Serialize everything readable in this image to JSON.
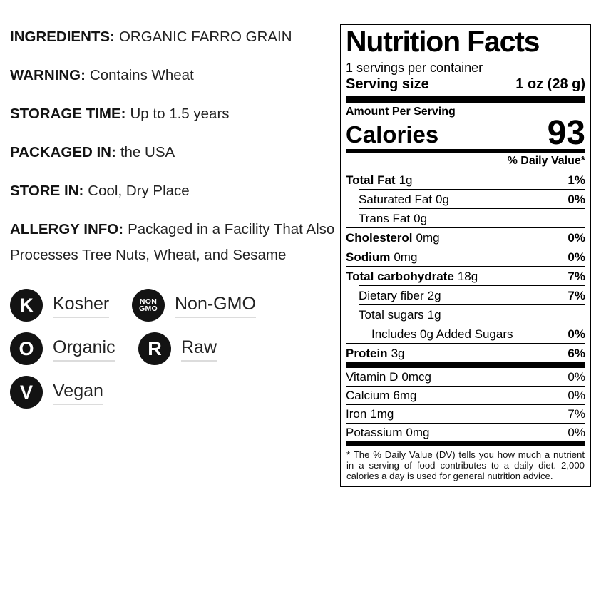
{
  "colors": {
    "text": "#1b1b1b",
    "panel_border": "#000000",
    "badge_circle": "#131313",
    "label_underline": "#dcdcdc"
  },
  "left_panel": {
    "sections": [
      {
        "label": "INGREDIENTS:",
        "value": "ORGANIC FARRO GRAIN"
      },
      {
        "label": "WARNING:",
        "value": "Contains Wheat"
      },
      {
        "label": "STORAGE TIME:",
        "value": "Up to 1.5 years"
      },
      {
        "label": "PACKAGED IN:",
        "value": "the USA"
      },
      {
        "label": "STORE IN:",
        "value": "Cool, Dry Place"
      },
      {
        "label": "ALLERGY INFO:",
        "value": "Packaged in a Facility That Also Processes Tree Nuts, Wheat, and Sesame"
      }
    ],
    "badges": [
      {
        "icon": "K",
        "label": "Kosher"
      },
      {
        "icon_top": "NON",
        "icon_bottom": "GMO",
        "label": "Non-GMO"
      },
      {
        "icon": "O",
        "label": "Organic"
      },
      {
        "icon": "R",
        "label": "Raw"
      },
      {
        "icon": "V",
        "label": "Vegan"
      }
    ]
  },
  "nutrition_facts": {
    "title": "Nutrition Facts",
    "servings_per_container": "1 servings per container",
    "serving_size_label": "Serving size",
    "serving_size_value": "1 oz (28 g)",
    "amount_per_serving": "Amount Per Serving",
    "calories_label": "Calories",
    "calories_value": "93",
    "daily_value_header": "% Daily Value*",
    "nutrients": [
      {
        "name": "Total Fat",
        "amount": "1g",
        "dv": "1%"
      },
      {
        "name": "Saturated Fat",
        "amount": "0g",
        "dv": "0%"
      },
      {
        "name": "Trans Fat",
        "amount": "0g",
        "dv": ""
      },
      {
        "name": "Cholesterol",
        "amount": "0mg",
        "dv": "0%"
      },
      {
        "name": "Sodium",
        "amount": "0mg",
        "dv": "0%"
      },
      {
        "name": "Total carbohydrate",
        "amount": "18g",
        "dv": "7%"
      },
      {
        "name": "Dietary fiber",
        "amount": "2g",
        "dv": "7%"
      },
      {
        "name": "Total sugars",
        "amount": "1g",
        "dv": ""
      },
      {
        "name": "Includes 0g Added Sugars",
        "amount": "",
        "dv": "0%"
      },
      {
        "name": "Protein",
        "amount": "3g",
        "dv": "6%"
      }
    ],
    "vitamins": [
      {
        "name": "Vitamin D",
        "amount": "0mcg",
        "dv": "0%"
      },
      {
        "name": "Calcium",
        "amount": "6mg",
        "dv": "0%"
      },
      {
        "name": "Iron",
        "amount": "1mg",
        "dv": "7%"
      },
      {
        "name": "Potassium",
        "amount": "0mg",
        "dv": "0%"
      }
    ],
    "footnote": "* The % Daily Value (DV) tells you how much a nutrient in a serving of food contributes to a daily diet. 2,000 calories a day is used for general nutrition advice."
  }
}
